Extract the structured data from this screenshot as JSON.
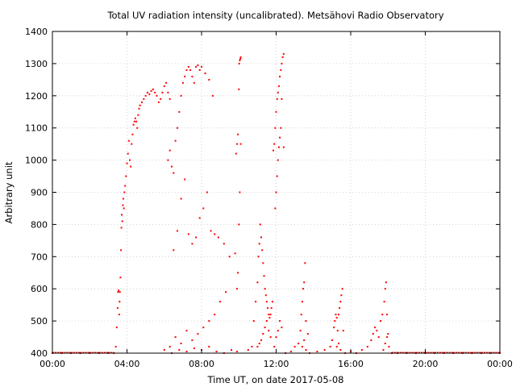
{
  "chart_data": {
    "type": "scatter",
    "title": "Total UV radiation intensity (uncalibrated). Metsähovi Radio Observatory",
    "xlabel": "Time UT, on date 2017-05-08",
    "ylabel": "Arbitrary unit",
    "xlim_hours": [
      0,
      24
    ],
    "ylim": [
      400,
      1400
    ],
    "x_ticks": [
      "00:00",
      "04:00",
      "08:00",
      "12:00",
      "16:00",
      "20:00",
      "00:00"
    ],
    "x_tick_hours": [
      0,
      4,
      8,
      12,
      16,
      20,
      24
    ],
    "y_ticks": [
      400,
      500,
      600,
      700,
      800,
      900,
      1000,
      1100,
      1200,
      1300,
      1400
    ],
    "grid": true,
    "grid_style": "dotted",
    "marker_color": "#ff0000",
    "series": [
      {
        "x_hours": [
          0.0,
          0.5,
          1.0,
          1.5,
          2.0,
          2.5,
          3.0,
          3.3,
          3.4,
          3.45,
          3.5,
          3.52,
          3.55,
          3.58,
          3.6,
          3.62,
          3.65,
          3.68,
          3.7,
          3.72,
          3.75,
          3.78,
          3.8,
          3.83,
          3.86,
          3.9,
          3.95,
          4.0,
          4.05,
          4.1,
          4.15,
          4.2,
          4.25,
          4.3,
          4.35,
          4.4,
          4.45,
          4.5,
          4.55,
          4.6,
          4.65,
          4.7,
          4.8,
          4.9,
          5.0,
          5.1,
          5.2,
          5.3,
          5.4,
          5.5,
          5.6,
          5.7,
          5.8,
          5.9,
          6.0,
          6.1,
          6.2,
          6.3,
          6.2,
          6.3,
          6.4,
          6.5,
          6.6,
          6.7,
          6.8,
          6.9,
          7.0,
          7.1,
          7.2,
          7.3,
          7.4,
          7.5,
          7.6,
          7.7,
          7.8,
          7.9,
          8.0,
          8.2,
          8.4,
          8.6,
          6.5,
          6.7,
          6.9,
          7.1,
          7.3,
          7.5,
          7.7,
          7.9,
          8.1,
          8.3,
          8.5,
          8.7,
          8.9,
          9.2,
          9.5,
          9.8,
          6.0,
          6.3,
          6.6,
          6.9,
          7.2,
          7.5,
          7.8,
          8.1,
          8.4,
          8.7,
          9.0,
          9.3,
          6.4,
          6.8,
          7.2,
          7.6,
          8.0,
          8.4,
          8.8,
          9.2,
          9.6,
          9.9,
          9.85,
          9.9,
          9.95,
          10.0,
          10.02,
          10.05,
          10.08,
          10.1,
          9.9,
          9.95,
          10.0,
          10.05,
          10.1,
          10.5,
          10.7,
          10.8,
          10.9,
          11.0,
          11.05,
          11.1,
          11.15,
          11.2,
          11.25,
          11.3,
          11.35,
          11.4,
          11.45,
          11.5,
          11.55,
          11.6,
          11.65,
          11.7,
          11.75,
          11.8,
          11.85,
          11.0,
          11.1,
          11.2,
          11.3,
          11.4,
          11.5,
          11.6,
          11.7,
          11.9,
          11.95,
          12.0,
          12.05,
          12.1,
          12.15,
          12.2,
          12.25,
          12.3,
          12.35,
          12.4,
          11.95,
          12.0,
          12.05,
          12.1,
          12.15,
          12.2,
          12.25,
          12.3,
          11.9,
          12.0,
          12.1,
          12.2,
          12.3,
          12.4,
          12.5,
          12.8,
          13.0,
          13.2,
          13.3,
          13.35,
          13.4,
          13.45,
          13.5,
          13.55,
          13.6,
          13.7,
          13.4,
          13.5,
          13.6,
          13.8,
          14.2,
          14.6,
          14.9,
          15.0,
          15.1,
          15.15,
          15.2,
          15.25,
          15.3,
          15.35,
          15.4,
          15.45,
          15.5,
          15.55,
          15.6,
          15.25,
          15.35,
          15.45,
          15.7,
          16.0,
          16.3,
          16.6,
          16.9,
          17.1,
          17.2,
          17.3,
          17.4,
          17.5,
          17.6,
          17.7,
          17.8,
          17.85,
          17.9,
          17.95,
          18.0,
          18.05,
          17.75,
          17.85,
          17.95,
          18.2,
          18.5,
          19.0,
          19.5,
          20.0,
          20.5,
          21.0,
          21.5,
          22.0,
          22.5,
          23.0,
          23.5,
          24.0
        ],
        "y": [
          400,
          400,
          400,
          400,
          400,
          400,
          400,
          400,
          420,
          480,
          540,
          590,
          595,
          520,
          560,
          590,
          635,
          720,
          790,
          830,
          810,
          860,
          880,
          850,
          900,
          920,
          950,
          990,
          1020,
          1060,
          1000,
          980,
          1050,
          1080,
          1110,
          1120,
          1130,
          1120,
          1100,
          1140,
          1160,
          1170,
          1180,
          1190,
          1200,
          1210,
          1205,
          1215,
          1220,
          1210,
          1200,
          1180,
          1190,
          1210,
          1230,
          1240,
          1210,
          1190,
          1000,
          1030,
          980,
          960,
          1060,
          1100,
          1150,
          1200,
          1240,
          1260,
          1280,
          1290,
          1280,
          1260,
          1240,
          1290,
          1295,
          1280,
          1290,
          1270,
          1250,
          1200,
          720,
          780,
          880,
          940,
          770,
          740,
          760,
          820,
          850,
          900,
          780,
          770,
          760,
          740,
          700,
          710,
          410,
          420,
          450,
          430,
          470,
          440,
          460,
          480,
          500,
          520,
          560,
          590,
          400,
          410,
          405,
          415,
          410,
          420,
          405,
          400,
          410,
          405,
          1020,
          1050,
          1080,
          1220,
          1300,
          1310,
          1315,
          1320,
          600,
          650,
          800,
          900,
          1050,
          410,
          420,
          500,
          560,
          620,
          700,
          740,
          800,
          760,
          720,
          680,
          640,
          600,
          580,
          560,
          540,
          520,
          510,
          520,
          540,
          560,
          1030,
          420,
          430,
          440,
          460,
          480,
          500,
          470,
          450,
          1050,
          1100,
          1150,
          1190,
          1210,
          1230,
          1260,
          1280,
          1300,
          1320,
          1330,
          850,
          900,
          950,
          1000,
          1040,
          1070,
          1100,
          1190,
          420,
          450,
          470,
          500,
          480,
          1040,
          400,
          405,
          420,
          430,
          470,
          520,
          560,
          600,
          620,
          680,
          500,
          460,
          420,
          440,
          410,
          400,
          405,
          410,
          420,
          440,
          480,
          500,
          520,
          510,
          470,
          520,
          540,
          560,
          580,
          600,
          470,
          420,
          430,
          410,
          400,
          405,
          400,
          410,
          420,
          440,
          460,
          480,
          470,
          450,
          500,
          520,
          560,
          600,
          620,
          520,
          460,
          420,
          410,
          430,
          450,
          400,
          400,
          400,
          400,
          400,
          400,
          400,
          400,
          400,
          400,
          400,
          400,
          400
        ]
      }
    ]
  }
}
